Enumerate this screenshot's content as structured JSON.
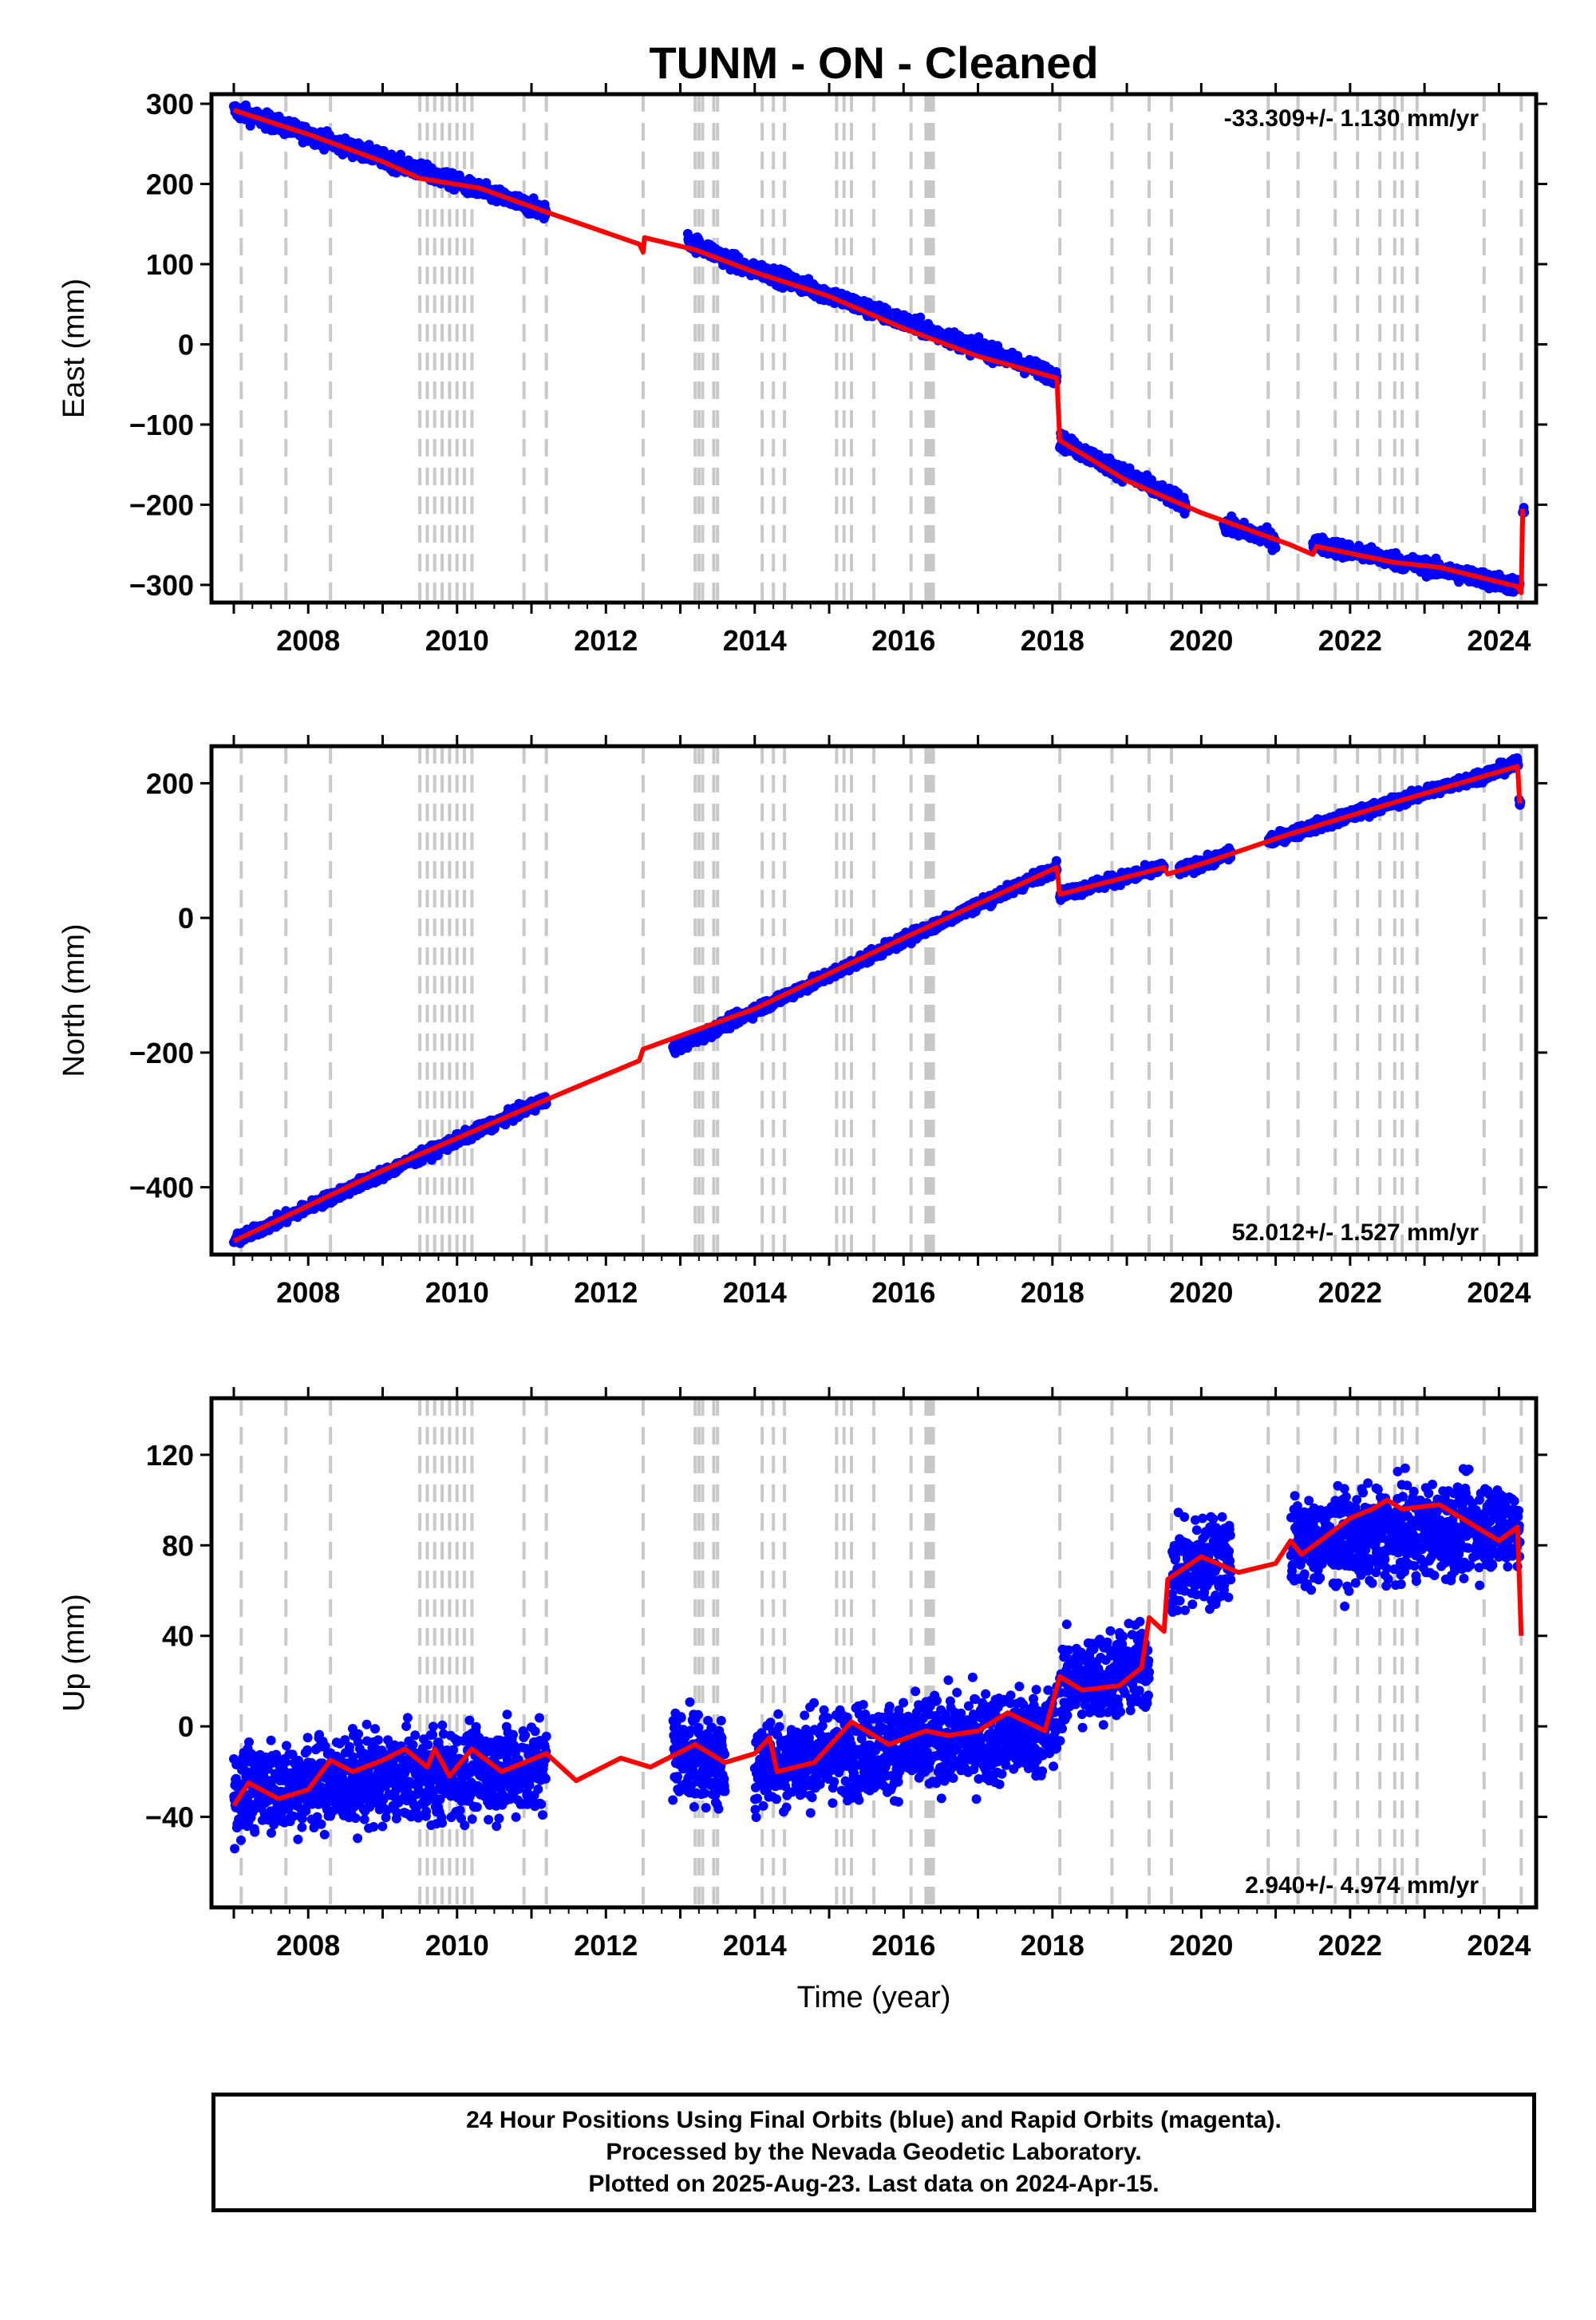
{
  "title": "TUNM  - ON - Cleaned",
  "xlabel": "Time (year)",
  "footer": {
    "line1": "24 Hour Positions Using Final Orbits (blue) and Rapid Orbits (magenta).",
    "line2": "Processed by the Nevada Geodetic Laboratory.",
    "line3": "Plotted on 2025-Aug-23. Last data on 2024-Apr-15."
  },
  "colors": {
    "data": "#0000ff",
    "model": "#ff0000",
    "steps": "#c8c8c8",
    "frame": "#000000"
  },
  "chart_data": [
    {
      "type": "scatter",
      "ylabel": "East (mm)",
      "rate": "-33.309+/- 1.130 mm/yr",
      "xlim": [
        2006.7,
        2024.5
      ],
      "ylim": [
        -322,
        312
      ],
      "yticks": [
        300,
        200,
        100,
        0,
        -100,
        -200,
        -300
      ],
      "ytick_labels": [
        "300",
        "200",
        "100",
        "0",
        "−100",
        "−200",
        "−300"
      ],
      "xticks": [
        2008,
        2010,
        2012,
        2014,
        2016,
        2018,
        2020,
        2022,
        2024
      ],
      "model": [
        [
          2007.0,
          292
        ],
        [
          2008.0,
          262
        ],
        [
          2009.0,
          228
        ],
        [
          2009.5,
          207
        ],
        [
          2010.3,
          195
        ],
        [
          2011.2,
          165
        ],
        [
          2012.45,
          125
        ],
        [
          2012.5,
          115
        ],
        [
          2012.52,
          133
        ],
        [
          2013.2,
          118
        ],
        [
          2014.0,
          90
        ],
        [
          2015.0,
          60
        ],
        [
          2016.0,
          20
        ],
        [
          2017.0,
          -15
        ],
        [
          2018.06,
          -42
        ],
        [
          2018.1,
          -120
        ],
        [
          2019.0,
          -170
        ],
        [
          2020.0,
          -210
        ],
        [
          2021.2,
          -250
        ],
        [
          2021.5,
          -262
        ],
        [
          2021.55,
          -252
        ],
        [
          2022.6,
          -272
        ],
        [
          2023.2,
          -278
        ],
        [
          2024.25,
          -302
        ],
        [
          2024.3,
          -310
        ],
        [
          2024.32,
          -205
        ]
      ],
      "segments": [
        [
          2007.0,
          2011.2,
          292,
          165
        ],
        [
          2013.1,
          2014.0,
          130,
          90
        ],
        [
          2014.0,
          2018.06,
          95,
          -40
        ],
        [
          2018.1,
          2019.8,
          -120,
          -200
        ],
        [
          2020.3,
          2021.0,
          -225,
          -245
        ],
        [
          2021.5,
          2024.28,
          -248,
          -302
        ],
        [
          2024.32,
          2024.34,
          -205,
          -210
        ]
      ],
      "noise": 7,
      "steps": [
        2007.1,
        2007.7,
        2008.3,
        2009.5,
        2009.6,
        2009.7,
        2009.8,
        2009.9,
        2010.0,
        2010.1,
        2010.2,
        2010.9,
        2011.2,
        2012.5,
        2013.2,
        2013.25,
        2013.3,
        2013.45,
        2013.5,
        2014.1,
        2014.25,
        2014.4,
        2015.1,
        2015.2,
        2015.3,
        2015.6,
        2016.1,
        2016.3,
        2016.33,
        2016.36,
        2016.4,
        2018.1,
        2018.8,
        2019.3,
        2019.6,
        2020.9,
        2021.3,
        2021.8,
        2022.1,
        2022.4,
        2022.6,
        2022.7,
        2022.9,
        2023.8,
        2024.3
      ]
    },
    {
      "type": "scatter",
      "ylabel": "North (mm)",
      "rate": "52.012+/- 1.527 mm/yr",
      "xlim": [
        2006.7,
        2024.5
      ],
      "ylim": [
        -500,
        255
      ],
      "yticks": [
        200,
        0,
        -200,
        -400
      ],
      "ytick_labels": [
        "200",
        "0",
        "−200",
        "−400"
      ],
      "xticks": [
        2008,
        2010,
        2012,
        2014,
        2016,
        2018,
        2020,
        2022,
        2024
      ],
      "model": [
        [
          2007.0,
          -480
        ],
        [
          2009.0,
          -375
        ],
        [
          2011.2,
          -270
        ],
        [
          2012.45,
          -212
        ],
        [
          2012.5,
          -195
        ],
        [
          2014.0,
          -135
        ],
        [
          2016.0,
          -30
        ],
        [
          2018.06,
          75
        ],
        [
          2018.1,
          35
        ],
        [
          2019.5,
          75
        ],
        [
          2019.55,
          65
        ],
        [
          2020.0,
          80
        ],
        [
          2021.2,
          125
        ],
        [
          2022.7,
          175
        ],
        [
          2024.25,
          225
        ],
        [
          2024.28,
          170
        ]
      ],
      "segments": [
        [
          2007.0,
          2011.2,
          -480,
          -270
        ],
        [
          2012.9,
          2018.06,
          -195,
          75
        ],
        [
          2018.1,
          2019.5,
          35,
          75
        ],
        [
          2019.7,
          2020.4,
          70,
          95
        ],
        [
          2020.9,
          2024.26,
          115,
          228
        ],
        [
          2024.27,
          2024.29,
          172,
          165
        ]
      ],
      "noise": 6,
      "steps": [
        2007.1,
        2007.7,
        2008.3,
        2009.5,
        2009.6,
        2009.7,
        2009.8,
        2009.9,
        2010.0,
        2010.1,
        2010.2,
        2010.9,
        2011.2,
        2012.5,
        2013.2,
        2013.25,
        2013.3,
        2013.45,
        2013.5,
        2014.1,
        2014.25,
        2014.4,
        2015.1,
        2015.2,
        2015.3,
        2015.6,
        2016.1,
        2016.3,
        2016.33,
        2016.36,
        2016.4,
        2018.1,
        2018.8,
        2019.3,
        2019.6,
        2020.9,
        2021.3,
        2021.8,
        2022.1,
        2022.4,
        2022.6,
        2022.7,
        2022.9,
        2023.8,
        2024.3
      ]
    },
    {
      "type": "scatter",
      "ylabel": "Up (mm)",
      "rate": "2.940+/- 4.974 mm/yr",
      "xlim": [
        2006.7,
        2024.5
      ],
      "ylim": [
        -80,
        145
      ],
      "yticks": [
        120,
        80,
        40,
        0,
        -40
      ],
      "ytick_labels": [
        "120",
        "80",
        "40",
        "0",
        "−40"
      ],
      "xticks": [
        2008,
        2010,
        2012,
        2014,
        2016,
        2018,
        2020,
        2022,
        2024
      ],
      "model": [
        [
          2007.0,
          -35
        ],
        [
          2007.2,
          -25
        ],
        [
          2007.6,
          -32
        ],
        [
          2008.0,
          -28
        ],
        [
          2008.3,
          -15
        ],
        [
          2008.6,
          -20
        ],
        [
          2009.0,
          -15
        ],
        [
          2009.3,
          -10
        ],
        [
          2009.6,
          -18
        ],
        [
          2009.7,
          -10
        ],
        [
          2009.9,
          -22
        ],
        [
          2010.2,
          -10
        ],
        [
          2010.6,
          -20
        ],
        [
          2011.2,
          -12
        ],
        [
          2011.6,
          -24
        ],
        [
          2012.2,
          -14
        ],
        [
          2012.6,
          -18
        ],
        [
          2013.2,
          -8
        ],
        [
          2013.6,
          -16
        ],
        [
          2014.0,
          -12
        ],
        [
          2014.2,
          -5
        ],
        [
          2014.3,
          -20
        ],
        [
          2014.8,
          -16
        ],
        [
          2015.3,
          2
        ],
        [
          2015.8,
          -8
        ],
        [
          2016.3,
          -2
        ],
        [
          2016.6,
          -4
        ],
        [
          2017.0,
          -2
        ],
        [
          2017.4,
          6
        ],
        [
          2017.9,
          -2
        ],
        [
          2018.1,
          22
        ],
        [
          2018.4,
          16
        ],
        [
          2018.9,
          18
        ],
        [
          2019.2,
          26
        ],
        [
          2019.3,
          48
        ],
        [
          2019.5,
          42
        ],
        [
          2019.55,
          65
        ],
        [
          2020.0,
          75
        ],
        [
          2020.5,
          68
        ],
        [
          2021.0,
          72
        ],
        [
          2021.2,
          82
        ],
        [
          2021.35,
          76
        ],
        [
          2021.6,
          82
        ],
        [
          2022.0,
          92
        ],
        [
          2022.3,
          96
        ],
        [
          2022.5,
          100
        ],
        [
          2022.7,
          96
        ],
        [
          2023.2,
          98
        ],
        [
          2023.6,
          90
        ],
        [
          2024.0,
          82
        ],
        [
          2024.25,
          88
        ],
        [
          2024.3,
          40
        ]
      ],
      "segments": [
        [
          2007.0,
          2011.2,
          -28,
          -18
        ],
        [
          2012.9,
          2013.6,
          -10,
          -18
        ],
        [
          2014.0,
          2018.06,
          -16,
          -2
        ],
        [
          2018.1,
          2019.3,
          18,
          26
        ],
        [
          2019.6,
          2020.4,
          68,
          76
        ],
        [
          2021.2,
          2024.28,
          80,
          90
        ]
      ],
      "noise": 14,
      "steps": [
        2007.1,
        2007.7,
        2008.3,
        2009.5,
        2009.6,
        2009.7,
        2009.8,
        2009.9,
        2010.0,
        2010.1,
        2010.2,
        2010.9,
        2011.2,
        2012.5,
        2013.2,
        2013.25,
        2013.3,
        2013.45,
        2013.5,
        2014.1,
        2014.25,
        2014.4,
        2015.1,
        2015.2,
        2015.3,
        2015.6,
        2016.1,
        2016.3,
        2016.33,
        2016.36,
        2016.4,
        2018.1,
        2018.8,
        2019.3,
        2019.6,
        2020.9,
        2021.3,
        2021.8,
        2022.1,
        2022.4,
        2022.6,
        2022.7,
        2022.9,
        2023.8,
        2024.3
      ]
    }
  ]
}
